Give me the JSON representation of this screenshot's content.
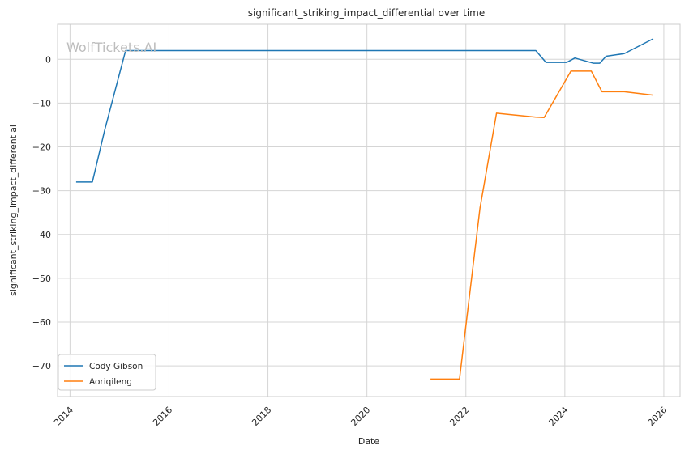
{
  "chart_data": {
    "type": "line",
    "title": "significant_striking_impact_differential over time",
    "xlabel": "Date",
    "ylabel": "significant_striking_impact_differential",
    "xlim": [
      "2013-10-01",
      "2026-05-01"
    ],
    "ylim": [
      -77,
      8
    ],
    "x_ticks": [
      "2014",
      "2016",
      "2018",
      "2020",
      "2022",
      "2024",
      "2026"
    ],
    "y_ticks": [
      0,
      -10,
      -20,
      -30,
      -40,
      -50,
      -60,
      -70
    ],
    "y_tick_labels": [
      "0",
      "−10",
      "−20",
      "−30",
      "−40",
      "−50",
      "−60",
      "−70"
    ],
    "grid": true,
    "legend_position": "bottom-left",
    "watermark": "WolfTickets.AI",
    "series": [
      {
        "name": "Cody Gibson",
        "color": "#1f77b4",
        "points": [
          [
            "2014-02-15",
            -28.0
          ],
          [
            "2014-06-15",
            -28.0
          ],
          [
            "2014-09-15",
            -16.0
          ],
          [
            "2015-02-15",
            2.0
          ],
          [
            "2023-06-01",
            2.0
          ],
          [
            "2023-08-15",
            -0.7
          ],
          [
            "2024-01-15",
            -0.7
          ],
          [
            "2024-03-15",
            0.3
          ],
          [
            "2024-08-01",
            -0.9
          ],
          [
            "2024-09-15",
            -0.9
          ],
          [
            "2024-11-01",
            0.7
          ],
          [
            "2025-03-15",
            1.3
          ],
          [
            "2025-10-15",
            4.7
          ]
        ]
      },
      {
        "name": "Aoriqileng",
        "color": "#ff7f0e",
        "points": [
          [
            "2021-04-15",
            -73.0
          ],
          [
            "2021-11-15",
            -73.0
          ],
          [
            "2022-04-15",
            -34.0
          ],
          [
            "2022-08-15",
            -12.3
          ],
          [
            "2023-06-01",
            -13.2
          ],
          [
            "2023-08-01",
            -13.3
          ],
          [
            "2024-02-15",
            -2.7
          ],
          [
            "2024-07-15",
            -2.7
          ],
          [
            "2024-10-01",
            -7.4
          ],
          [
            "2025-03-15",
            -7.4
          ],
          [
            "2025-10-15",
            -8.2
          ]
        ]
      }
    ]
  }
}
